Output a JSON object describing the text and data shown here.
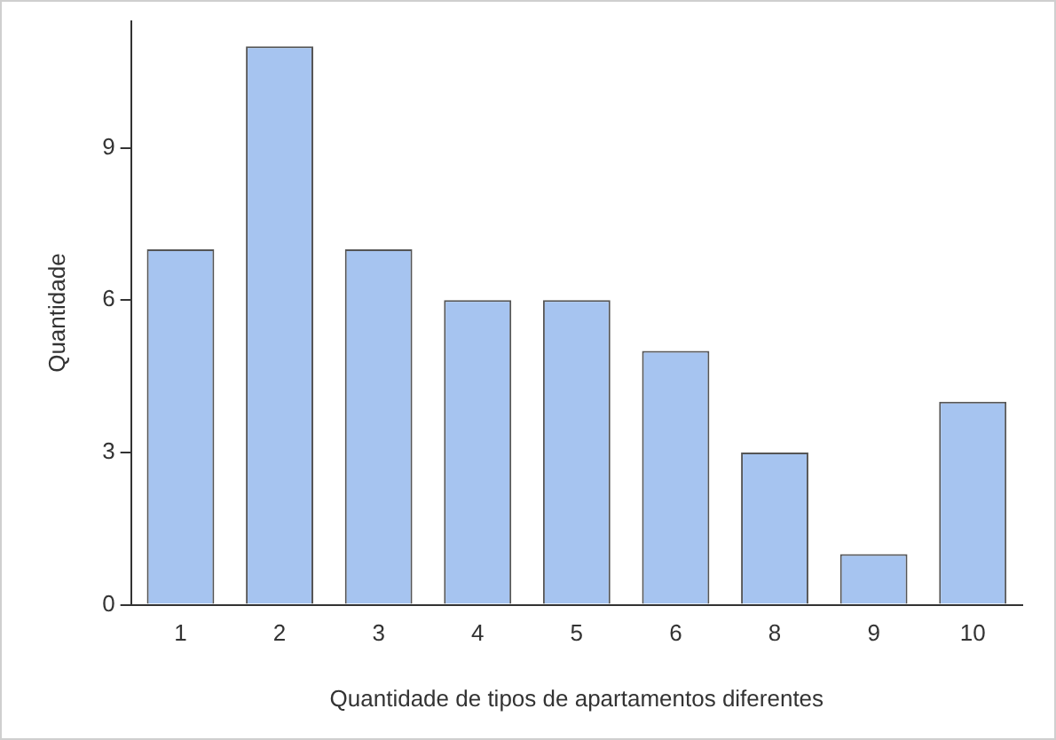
{
  "chart_data": {
    "type": "bar",
    "xlabel": "Quantidade de tipos de apartamentos diferentes",
    "ylabel": "Quantidade",
    "categories": [
      "1",
      "2",
      "3",
      "4",
      "5",
      "6",
      "8",
      "9",
      "10"
    ],
    "values": [
      7,
      11,
      7,
      6,
      6,
      5,
      3,
      1,
      4
    ],
    "color": "#a6c4f0",
    "ylim": [
      0,
      11.5
    ],
    "yticks": [
      0,
      3,
      6,
      9
    ],
    "grid": false,
    "legend": false
  }
}
